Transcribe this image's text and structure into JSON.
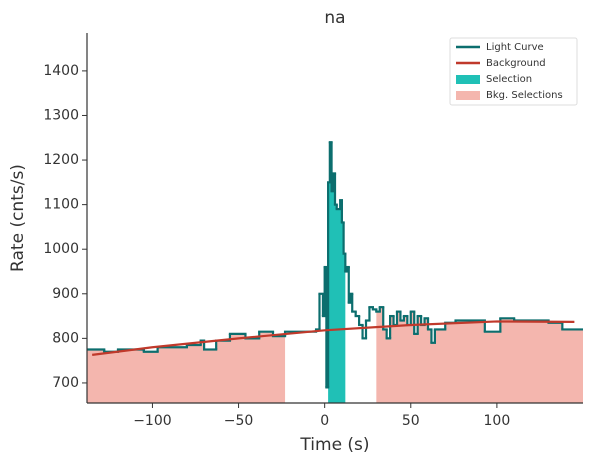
{
  "chart_data": {
    "type": "step",
    "title": "na",
    "x_label": "Time (s)",
    "y_label": "Rate (cnts/s)",
    "xlim": [
      -138,
      150
    ],
    "ylim": [
      655,
      1485
    ],
    "xticks": [
      {
        "value": -100,
        "label": "−100"
      },
      {
        "value": -50,
        "label": "−50"
      },
      0,
      50,
      100
    ],
    "yticks": [
      700,
      800,
      900,
      1000,
      1100,
      1200,
      1300,
      1400
    ],
    "legend": "upper right",
    "series": [
      {
        "name": "Light Curve",
        "color": "#0c6e6e",
        "x": [
          -138,
          -128,
          -120,
          -105,
          -97,
          -80,
          -72,
          -70,
          -63,
          -55,
          -46,
          -38,
          -30,
          -23,
          -5,
          -3,
          -1,
          0,
          1,
          2,
          3,
          4,
          5,
          6,
          7,
          9,
          10,
          11,
          12,
          13,
          14,
          15,
          16,
          18,
          20,
          22,
          24,
          26,
          28,
          30,
          32,
          34,
          36,
          38,
          40,
          42,
          44,
          46,
          48,
          50,
          52,
          54,
          56,
          58,
          60,
          62,
          64,
          70,
          76,
          93,
          102,
          110,
          130,
          138
        ],
        "values": [
          775,
          770,
          775,
          770,
          780,
          785,
          795,
          775,
          795,
          810,
          800,
          815,
          805,
          815,
          820,
          900,
          850,
          960,
          690,
          1150,
          1240,
          1130,
          1170,
          1100,
          1090,
          1110,
          1060,
          990,
          950,
          960,
          880,
          900,
          860,
          850,
          830,
          800,
          840,
          870,
          865,
          860,
          870,
          820,
          800,
          850,
          830,
          860,
          840,
          850,
          830,
          860,
          810,
          850,
          830,
          845,
          820,
          790,
          820,
          835,
          840,
          815,
          845,
          840,
          835,
          820
        ]
      },
      {
        "name": "Background",
        "color": "#c0392b",
        "x": [
          -135,
          -100,
          -50,
          0,
          50,
          100,
          145
        ],
        "values": [
          763,
          780,
          800,
          818,
          830,
          838,
          837
        ]
      }
    ],
    "selection": {
      "name": "Selection",
      "color": "#20c0b6",
      "range": [
        2,
        12
      ]
    },
    "bkg_selections": {
      "name": "Bkg. Selections",
      "color": "#f4b6ae",
      "ranges": [
        [
          -138,
          -23
        ],
        [
          30,
          150
        ]
      ]
    }
  }
}
